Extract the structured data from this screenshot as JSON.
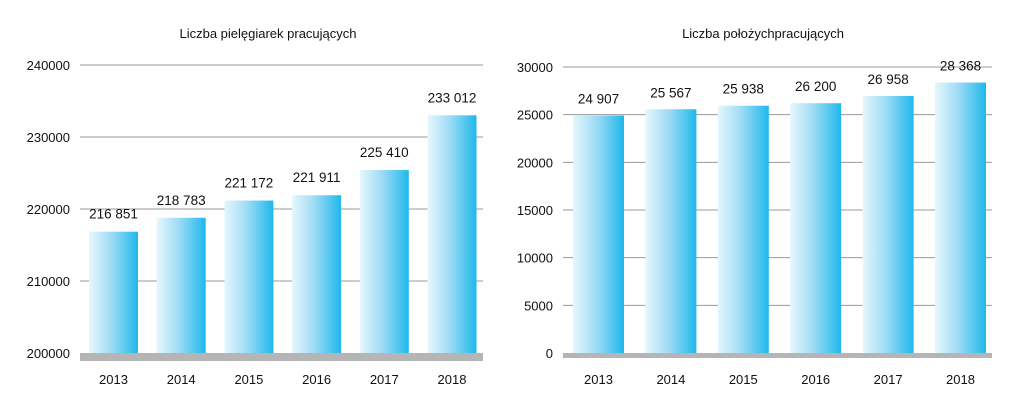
{
  "chart_data": [
    {
      "type": "bar",
      "title": "Liczba pielęgiarek pracujących",
      "categories": [
        "2013",
        "2014",
        "2015",
        "2016",
        "2017",
        "2018"
      ],
      "values": [
        216851,
        218783,
        221172,
        221911,
        225410,
        233012
      ],
      "data_labels": [
        "216 851",
        "218 783",
        "221 172",
        "221 911",
        "225 410",
        "233 012"
      ],
      "yticks": [
        200000,
        210000,
        220000,
        230000,
        240000
      ],
      "ylim": [
        200000,
        240000
      ],
      "xlabel": "",
      "ylabel": "",
      "grid": true,
      "legend": "none",
      "bar_gradient": [
        "#e6f7fd",
        "#1fb8ec"
      ],
      "grid_color": "#9a9a9a",
      "floor_color": "#b5b5b5"
    },
    {
      "type": "bar",
      "title": "Liczba położychpracujących",
      "categories": [
        "2013",
        "2014",
        "2015",
        "2016",
        "2017",
        "2018"
      ],
      "values": [
        24907,
        25567,
        25938,
        26200,
        26958,
        28368
      ],
      "data_labels": [
        "24 907",
        "25 567",
        "25 938",
        "26 200",
        "26 958",
        "28 368"
      ],
      "yticks": [
        0,
        5000,
        10000,
        15000,
        20000,
        25000,
        30000
      ],
      "ylim": [
        0,
        30000
      ],
      "xlabel": "",
      "ylabel": "",
      "grid": true,
      "legend": "none",
      "bar_gradient": [
        "#e6f7fd",
        "#1fb8ec"
      ],
      "grid_color": "#9a9a9a",
      "floor_color": "#b5b5b5"
    }
  ]
}
